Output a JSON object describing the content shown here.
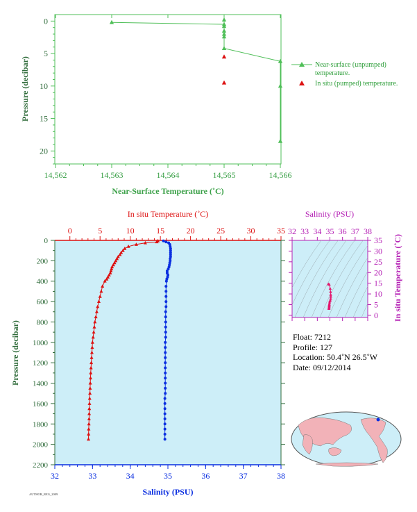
{
  "chart_data": [
    {
      "type": "scatter",
      "xlabel": "Near-Surface Temperature (˚C)",
      "ylabel": "Pressure (decibar)",
      "xlim": [
        14.562,
        14.566
      ],
      "ylim": [
        22,
        -1
      ],
      "x_ticks": [
        "14,562",
        "14,563",
        "14,564",
        "14,565",
        "14,566"
      ],
      "y_ticks": [
        "0",
        "5",
        "10",
        "15",
        "20"
      ],
      "series": [
        {
          "name": "Near-surface (unpumped) temperature.",
          "color": "#4fbf58",
          "points": [
            [
              14.563,
              0.2
            ],
            [
              14.565,
              0.5
            ],
            [
              14.565,
              -0.2
            ],
            [
              14.565,
              0.8
            ],
            [
              14.565,
              1.5
            ],
            [
              14.565,
              2.0
            ],
            [
              14.565,
              2.4
            ],
            [
              14.565,
              4.2
            ],
            [
              14.566,
              6.2
            ],
            [
              14.566,
              10.0
            ],
            [
              14.566,
              18.5
            ]
          ]
        },
        {
          "name": "In situ (pumped) temperature.",
          "color": "#dd1111",
          "points": [
            [
              14.565,
              5.5
            ],
            [
              14.565,
              9.5
            ]
          ]
        }
      ]
    },
    {
      "type": "line",
      "xlabel_top": "In situ Temperature (˚C)",
      "xlabel_bottom": "Salinity (PSU)",
      "ylabel": "Pressure (decibar)",
      "temp_lim": [
        -2.5,
        35
      ],
      "sal_lim": [
        32,
        38
      ],
      "ylim": [
        2200,
        0
      ],
      "temp_ticks": [
        "0",
        "5",
        "10",
        "15",
        "20",
        "25",
        "30",
        "35"
      ],
      "sal_ticks": [
        "32",
        "33",
        "34",
        "35",
        "36",
        "37",
        "38"
      ],
      "y_ticks": [
        "0",
        "200",
        "400",
        "600",
        "800",
        "1000",
        "1200",
        "1400",
        "1600",
        "1800",
        "2000",
        "2200"
      ],
      "series": [
        {
          "name": "In situ Temperature",
          "color": "#dd1111",
          "pressure": [
            5,
            15,
            25,
            40,
            60,
            80,
            100,
            120,
            140,
            160,
            180,
            200,
            220,
            240,
            260,
            280,
            300,
            320,
            340,
            360,
            380,
            400,
            450,
            500,
            550,
            600,
            650,
            700,
            750,
            800,
            850,
            900,
            950,
            1000,
            1050,
            1100,
            1150,
            1200,
            1250,
            1300,
            1350,
            1400,
            1450,
            1500,
            1550,
            1600,
            1650,
            1700,
            1750,
            1800,
            1850,
            1900,
            1950
          ],
          "values": [
            14.6,
            14.4,
            12.5,
            11.0,
            9.7,
            9.1,
            8.8,
            8.5,
            8.3,
            8.0,
            7.8,
            7.6,
            7.4,
            7.2,
            7.0,
            6.9,
            6.8,
            6.7,
            6.5,
            6.3,
            6.1,
            5.8,
            5.4,
            5.2,
            5.0,
            4.8,
            4.6,
            4.45,
            4.3,
            4.15,
            4.05,
            3.95,
            3.85,
            3.75,
            3.7,
            3.65,
            3.6,
            3.55,
            3.5,
            3.45,
            3.42,
            3.38,
            3.35,
            3.32,
            3.28,
            3.25,
            3.22,
            3.2,
            3.18,
            3.15,
            3.12,
            3.1,
            3.08
          ]
        },
        {
          "name": "Salinity",
          "color": "#0a2ee0",
          "pressure": [
            5,
            15,
            25,
            40,
            60,
            80,
            100,
            120,
            140,
            160,
            180,
            200,
            220,
            240,
            260,
            280,
            300,
            320,
            340,
            360,
            380,
            400,
            450,
            500,
            550,
            600,
            650,
            700,
            750,
            800,
            850,
            900,
            950,
            1000,
            1050,
            1100,
            1150,
            1200,
            1250,
            1300,
            1350,
            1400,
            1450,
            1500,
            1550,
            1600,
            1650,
            1700,
            1750,
            1800,
            1850,
            1900,
            1950
          ],
          "values": [
            34.88,
            34.95,
            35.02,
            35.05,
            35.06,
            35.07,
            35.07,
            35.07,
            35.07,
            35.07,
            35.06,
            35.06,
            35.05,
            35.04,
            35.03,
            35.01,
            34.98,
            34.98,
            35.0,
            34.99,
            34.97,
            34.96,
            34.95,
            34.95,
            34.95,
            34.95,
            34.95,
            34.94,
            34.94,
            34.94,
            34.94,
            34.94,
            34.94,
            34.93,
            34.93,
            34.93,
            34.93,
            34.93,
            34.93,
            34.93,
            34.93,
            34.93,
            34.93,
            34.93,
            34.92,
            34.92,
            34.92,
            34.92,
            34.92,
            34.92,
            34.92,
            34.92,
            34.92
          ]
        }
      ]
    },
    {
      "type": "scatter",
      "xlabel": "Salinity (PSU)",
      "ylabel": "In situ Temperature (˚C)",
      "xlim": [
        32,
        38
      ],
      "ylim": [
        -1,
        35
      ],
      "x_ticks": [
        "32",
        "33",
        "34",
        "35",
        "36",
        "37",
        "38"
      ],
      "y_ticks": [
        "0",
        "5",
        "10",
        "15",
        "20",
        "25",
        "30",
        "35"
      ],
      "color": "#e4186e",
      "salinity": [
        34.88,
        34.95,
        35.02,
        35.05,
        35.06,
        35.07,
        35.06,
        35.03,
        34.98,
        34.97,
        34.95,
        34.95,
        34.94,
        34.94,
        34.93,
        34.93,
        34.93,
        34.92
      ],
      "temperature": [
        14.6,
        14.4,
        12.5,
        11.0,
        9.7,
        8.8,
        7.8,
        7.0,
        6.5,
        5.8,
        5.2,
        4.8,
        4.45,
        4.15,
        3.75,
        3.5,
        3.3,
        3.1
      ]
    }
  ],
  "info": {
    "float": "Float:  7212",
    "profile": "Profile:  127",
    "location": "Location:  50.4˚N  26.5˚W",
    "date": "Date:  09/12/2014"
  },
  "footer_code": "AUTHOR_REG_2009"
}
